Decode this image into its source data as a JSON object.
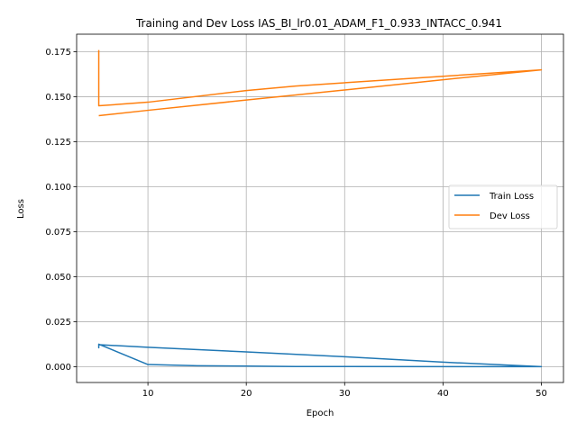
{
  "chart_data": {
    "type": "line",
    "title": "Training and Dev Loss IAS_BI_lr0.01_ADAM_F1_0.933_INTACC_0.941",
    "xlabel": "Epoch",
    "ylabel": "Loss",
    "xlim": [
      2.75,
      52.25
    ],
    "ylim": [
      -0.0088,
      0.1848
    ],
    "xticks": [
      10,
      20,
      30,
      40,
      50
    ],
    "xtick_labels": [
      "10",
      "20",
      "30",
      "40",
      "50"
    ],
    "yticks": [
      0.0,
      0.025,
      0.05,
      0.075,
      0.1,
      0.125,
      0.15,
      0.175
    ],
    "ytick_labels": [
      "0.000",
      "0.025",
      "0.050",
      "0.075",
      "0.100",
      "0.125",
      "0.150",
      "0.175"
    ],
    "grid": true,
    "legend": {
      "placement": "center-right"
    },
    "series": [
      {
        "name": "Train Loss",
        "color": "#1f77b4",
        "x": [
          5,
          5,
          5,
          10,
          15,
          20,
          25,
          50,
          40,
          30,
          20,
          10,
          5
        ],
        "y": [
          0.0125,
          0.0105,
          0.0125,
          0.0012,
          0.0005,
          0.0003,
          0.0001,
          0.0,
          0.0025,
          0.0055,
          0.0082,
          0.0108,
          0.0122
        ]
      },
      {
        "name": "Dev Loss",
        "color": "#ff7f0e",
        "x": [
          5,
          5,
          5,
          10,
          20,
          25,
          50,
          40,
          30,
          20,
          10,
          5
        ],
        "y": [
          0.176,
          0.145,
          0.145,
          0.147,
          0.1535,
          0.156,
          0.165,
          0.1595,
          0.1538,
          0.1482,
          0.1425,
          0.1395
        ]
      }
    ]
  }
}
